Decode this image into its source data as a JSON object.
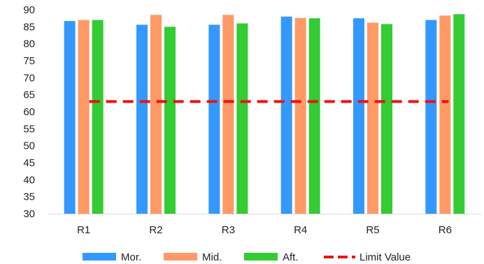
{
  "chart_data": {
    "type": "bar",
    "categories": [
      "R1",
      "R2",
      "R3",
      "R4",
      "R5",
      "R6"
    ],
    "series": [
      {
        "name": "Mor.",
        "color": "#3399FF",
        "values": [
          86.7,
          85.6,
          85.6,
          88.0,
          87.5,
          87.0
        ]
      },
      {
        "name": "Mid.",
        "color": "#FF9966",
        "values": [
          87.0,
          88.5,
          88.5,
          87.6,
          86.2,
          88.3
        ]
      },
      {
        "name": "Aft.",
        "color": "#33CC33",
        "values": [
          87.0,
          85.0,
          86.0,
          87.5,
          85.8,
          88.7
        ]
      }
    ],
    "limit": {
      "name": "Limit Value",
      "value": 63,
      "color": "#EE1111",
      "style": "dashed"
    },
    "ylim": [
      30,
      90
    ],
    "yticks": [
      30,
      35,
      40,
      45,
      50,
      55,
      60,
      65,
      70,
      75,
      80,
      85,
      90
    ],
    "grid": false,
    "legend_position": "bottom",
    "title": "",
    "xlabel": "",
    "ylabel": ""
  }
}
